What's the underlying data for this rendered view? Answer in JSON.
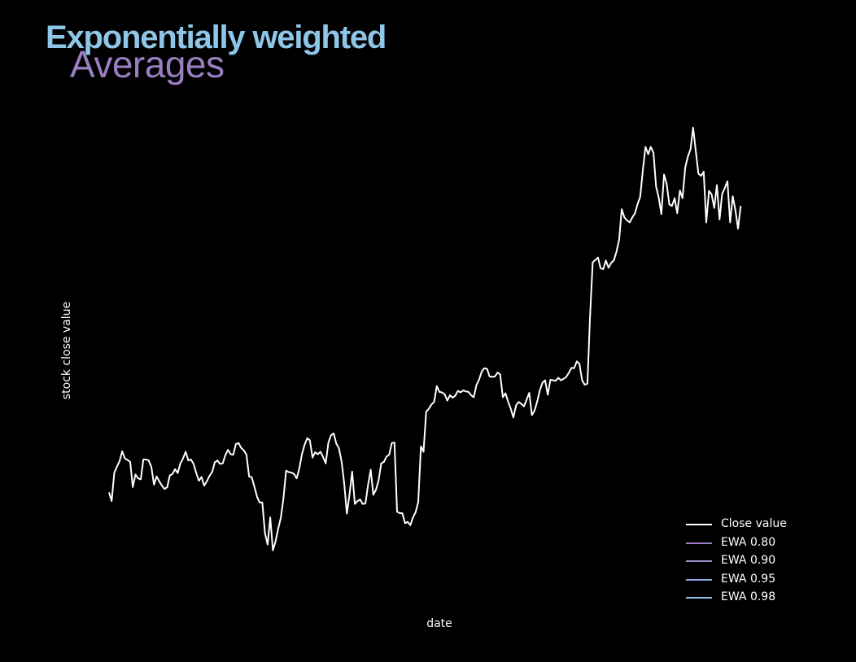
{
  "header": {
    "title_line_1": "Exponentially weighted",
    "title_line_2": "Averages"
  },
  "colors": {
    "background": "#000000",
    "title_line_1": "#8ec6e8",
    "title_line_2": "#9b7ec2",
    "close_line": "#ffffff"
  },
  "chart_data": {
    "type": "line",
    "xlabel": "date",
    "ylabel": "stock close value",
    "x_index_range": [
      0,
      250
    ],
    "ylim": [
      0,
      100
    ],
    "legend_position": "bottom-right",
    "grid": false,
    "series": [
      {
        "name": "Close value",
        "color": "#ffffff",
        "values": [
          20.3,
          18.5,
          24.4,
          25.6,
          26.8,
          28.8,
          27.3,
          27.0,
          26.6,
          21.4,
          24.0,
          23.2,
          23.0,
          27.1,
          27.1,
          26.9,
          25.6,
          21.9,
          23.6,
          22.6,
          21.7,
          21.0,
          21.4,
          23.8,
          24.1,
          25.1,
          24.3,
          26.3,
          27.3,
          28.7,
          26.9,
          27.1,
          26.2,
          24.3,
          22.7,
          23.5,
          21.7,
          22.6,
          23.7,
          24.5,
          26.5,
          26.9,
          26.2,
          26.3,
          28.0,
          29.1,
          28.2,
          28.1,
          30.3,
          30.5,
          29.5,
          29.0,
          28.1,
          23.6,
          23.4,
          21.5,
          19.4,
          18.2,
          18.2,
          11.9,
          9.5,
          15.1,
          8.3,
          10.1,
          12.8,
          15.0,
          19.1,
          24.8,
          24.5,
          24.4,
          24.1,
          23.2,
          25.3,
          28.2,
          30.2,
          31.5,
          31.1,
          27.5,
          28.6,
          28.2,
          28.7,
          27.6,
          26.3,
          30.6,
          32.1,
          32.5,
          30.4,
          29.4,
          26.7,
          22.0,
          15.9,
          20.0,
          24.6,
          17.9,
          18.5,
          18.8,
          17.9,
          18.0,
          21.8,
          25.0,
          19.8,
          20.8,
          22.8,
          26.3,
          26.6,
          27.7,
          28.1,
          30.5,
          30.6,
          16.3,
          16.0,
          16.0,
          13.9,
          14.2,
          13.5,
          15.1,
          16.2,
          18.3,
          29.8,
          28.7,
          37.0,
          37.6,
          38.5,
          39.0,
          42.3,
          41.1,
          41.0,
          40.6,
          39.3,
          40.4,
          39.9,
          40.3,
          41.3,
          41.0,
          41.4,
          41.2,
          41.1,
          40.4,
          40.0,
          42.5,
          43.6,
          45.3,
          46.0,
          45.9,
          44.3,
          44.2,
          44.3,
          45.1,
          44.7,
          40.0,
          40.8,
          39.1,
          37.6,
          35.8,
          38.3,
          39.0,
          38.6,
          38.1,
          39.5,
          40.9,
          36.3,
          37.2,
          39.1,
          41.4,
          43.0,
          43.5,
          40.5,
          43.6,
          43.5,
          43.4,
          44.0,
          43.5,
          43.8,
          44.2,
          45.1,
          46.1,
          46.0,
          47.4,
          46.9,
          43.5,
          42.6,
          42.8,
          56.5,
          67.9,
          68.4,
          68.9,
          66.7,
          66.5,
          68.3,
          66.8,
          67.8,
          68.3,
          70.1,
          72.6,
          78.9,
          77.2,
          76.6,
          76.2,
          77.2,
          78.1,
          80.0,
          81.5,
          87.1,
          91.8,
          90.3,
          91.8,
          90.6,
          83.6,
          81.3,
          77.9,
          86.1,
          84.2,
          79.9,
          79.6,
          81.2,
          78.1,
          82.8,
          81.2,
          87.5,
          89.8,
          91.3,
          95.8,
          91.0,
          86.3,
          85.8,
          86.7,
          76.2,
          82.7,
          82.0,
          79.2,
          83.9,
          76.8,
          82.1,
          83.3,
          84.7,
          76.2,
          81.6,
          78.7,
          74.9,
          79.6
        ]
      },
      {
        "name": "EWA 0.80",
        "color": "#9c7cc4",
        "values": []
      },
      {
        "name": "EWA 0.90",
        "color": "#9e92d2",
        "values": []
      },
      {
        "name": "EWA 0.95",
        "color": "#8fa8e4",
        "values": []
      },
      {
        "name": "EWA 0.98",
        "color": "#8ec6ea",
        "values": []
      }
    ]
  }
}
